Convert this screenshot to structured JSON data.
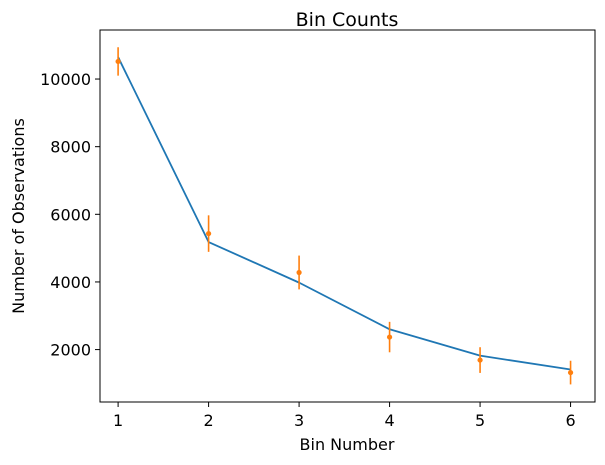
{
  "chart_data": {
    "type": "line",
    "title": "Bin Counts",
    "xlabel": "Bin Number",
    "ylabel": "Number of Observations",
    "xlim": [
      0.8,
      6.27
    ],
    "ylim": [
      450,
      11450
    ],
    "xticks": [
      1,
      2,
      3,
      4,
      5,
      6
    ],
    "yticks": [
      2000,
      4000,
      6000,
      8000,
      10000
    ],
    "grid": false,
    "series": [
      {
        "kind": "line",
        "color": "#1f77b4",
        "x": [
          1,
          2,
          3,
          4,
          5,
          6
        ],
        "y": [
          10650,
          5180,
          3980,
          2600,
          1820,
          1410
        ]
      },
      {
        "kind": "errorbar",
        "color": "#ff7f0e",
        "x": [
          1,
          2,
          3,
          4,
          5,
          6
        ],
        "y": [
          10520,
          5430,
          4280,
          2370,
          1690,
          1320
        ],
        "yerr": [
          420,
          540,
          500,
          450,
          380,
          350
        ]
      }
    ]
  }
}
